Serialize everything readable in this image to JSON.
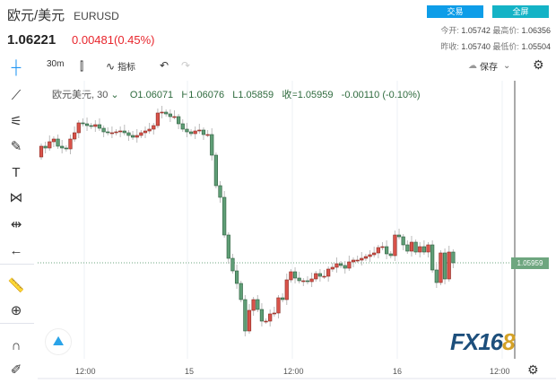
{
  "header": {
    "name": "欧元/美元",
    "symbol": "EURUSD",
    "price": "1.06221",
    "change": "0.00481(0.45%)",
    "trade_btn": "交易",
    "fullscreen_btn": "全屏",
    "stats": [
      {
        "k": "今开:",
        "v": "1.05742",
        "k2": "最高价:",
        "v2": "1.06356"
      },
      {
        "k": "昨收:",
        "v": "1.05740",
        "k2": "最低价:",
        "v2": "1.05504"
      }
    ]
  },
  "toolbar": {
    "interval": "30m",
    "indicators": "指标",
    "save": "保存"
  },
  "legend": {
    "name": "欧元美元, 30",
    "open": "O1.06071",
    "high": "H1.06076",
    "low": "L1.05859",
    "close": "收=1.05959",
    "change": "-0.00110 (-0.10%)"
  },
  "colors": {
    "up": "#d9534a",
    "down": "#5f9e76",
    "trade": "#0e9de8",
    "fullscreen": "#14b3c6",
    "last_price": "#6ea67f"
  },
  "left_tools": [
    "crosshair-icon",
    "trend-line-icon",
    "fib-icon",
    "brush-icon",
    "text-icon",
    "pattern-icon",
    "measure-icon",
    "back-arrow-icon",
    "ruler-icon",
    "zoom-in-icon",
    "magnet-icon",
    "lock-draw-icon"
  ],
  "chart_data": {
    "type": "candlestick",
    "ylim": [
      1.04889,
      1.07939
    ],
    "x_ticks": [
      "12:00",
      "15",
      "12:00",
      "16",
      "12:00"
    ],
    "last_price": "1.05959",
    "first_open": 1.07139,
    "closes": [
      1.07259,
      1.07239,
      1.07309,
      1.07339,
      1.07259,
      1.07239,
      1.07229,
      1.07339,
      1.07409,
      1.07519,
      1.07509,
      1.07489,
      1.07479,
      1.07499,
      1.07459,
      1.07419,
      1.07409,
      1.07409,
      1.07419,
      1.07429,
      1.07409,
      1.07379,
      1.07359,
      1.07379,
      1.07409,
      1.07429,
      1.07449,
      1.07489,
      1.07629,
      1.07639,
      1.07619,
      1.07589,
      1.07589,
      1.07509,
      1.07449,
      1.07419,
      1.07399,
      1.07429,
      1.07439,
      1.07389,
      1.07389,
      1.07159,
      1.06819,
      1.06689,
      1.06269,
      1.06009,
      1.05869,
      1.05729,
      1.05549,
      1.05199,
      1.05429,
      1.05549,
      1.05439,
      1.05309,
      1.05309,
      1.05389,
      1.05399,
      1.05569,
      1.05549,
      1.05769,
      1.05859,
      1.05789,
      1.05759,
      1.05759,
      1.05749,
      1.05779,
      1.05839,
      1.05809,
      1.05809,
      1.05889,
      1.05909,
      1.05949,
      1.05929,
      1.05899,
      1.05969,
      1.05989,
      1.05989,
      1.06009,
      1.06029,
      1.06049,
      1.06069,
      1.06129,
      1.06139,
      1.06059,
      1.06039,
      1.06269,
      1.06249,
      1.06159,
      1.06089,
      1.06189,
      1.06079,
      1.06139,
      1.06079,
      1.06159,
      1.05879,
      1.05739,
      1.06069,
      1.05779,
      1.06079,
      1.05959
    ]
  },
  "logo": "FX168"
}
